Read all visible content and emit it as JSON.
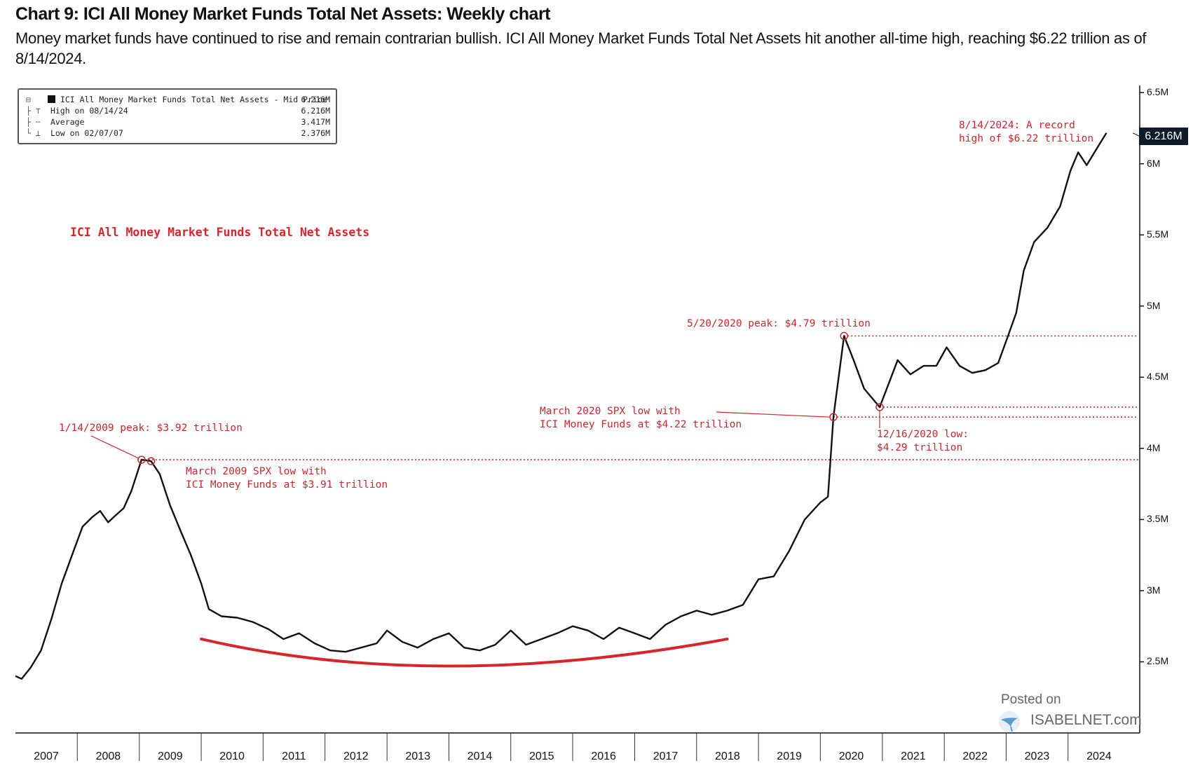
{
  "header": {
    "title": "Chart 9: ICI All Money Market Funds Total Net Assets: Weekly chart",
    "subtitle": "Money market funds have continued to rise and remain contrarian bullish. ICI All Money Market Funds Total Net Assets hit another all-time high, reaching $6.22 trillion as of 8/14/2024."
  },
  "legend": {
    "rows": [
      {
        "glyph": "⊟",
        "label": "ICI All Money Market Funds Total Net Assets - Mid Price",
        "value": "6.216M"
      },
      {
        "glyph": "├ ⊤",
        "label": "High on 08/14/24",
        "value": "6.216M"
      },
      {
        "glyph": "├ ╌",
        "label": "Average",
        "value": "3.417M"
      },
      {
        "glyph": "└ ⊥",
        "label": "Low on 02/07/07",
        "value": "2.376M"
      }
    ]
  },
  "series_label": "ICI All Money Market Funds Total Net Assets",
  "last_value_badge": "6.216M",
  "annotations": {
    "peak_2009": "1/14/2009 peak: $3.92 trillion",
    "low_2009": [
      "March 2009 SPX low with",
      "ICI Money Funds at $3.91 trillion"
    ],
    "low_2020_spx": [
      "March 2020 SPX low with",
      "ICI Money Funds at $4.22 trillion"
    ],
    "peak_2020": "5/20/2020 peak: $4.79 trillion",
    "low_2020_dec": [
      "12/16/2020 low:",
      "$4.29 trillion"
    ],
    "record_2024": [
      "8/14/2024: A record",
      "high of $6.22 trillion"
    ]
  },
  "watermark": {
    "line1": "Posted on",
    "line2": "ISABELNET.com"
  },
  "colors": {
    "line": "#111111",
    "annotation": "#c8282d",
    "trend_arc": "#d7262b",
    "badge": "#0d1b2a"
  },
  "chart_data": {
    "type": "line",
    "title": "Chart 9: ICI All Money Market Funds Total Net Assets: Weekly chart",
    "xlabel": "",
    "ylabel": "",
    "x_tick_labels": [
      "2007",
      "2008",
      "2009",
      "2010",
      "2011",
      "2012",
      "2013",
      "2014",
      "2015",
      "2016",
      "2017",
      "2018",
      "2019",
      "2020",
      "2021",
      "2022",
      "2023",
      "2024"
    ],
    "y_tick_labels": [
      "2.5M",
      "3M",
      "3.5M",
      "4M",
      "4.5M",
      "5M",
      "5.5M",
      "6M",
      "6.5M"
    ],
    "y_tick_values": [
      2.5,
      3.0,
      3.5,
      4.0,
      4.5,
      5.0,
      5.5,
      6.0,
      6.5
    ],
    "ylim": [
      2.0,
      6.55
    ],
    "xlim": [
      "2007-01-01",
      "2024-12-31"
    ],
    "y_axis_side": "right",
    "grid": false,
    "legend_position": "top-left",
    "series": [
      {
        "name": "ICI All Money Market Funds Total Net Assets - Mid Price",
        "points": [
          [
            "2007-01-01",
            2.4
          ],
          [
            "2007-02-07",
            2.38
          ],
          [
            "2007-04-01",
            2.46
          ],
          [
            "2007-06-01",
            2.58
          ],
          [
            "2007-08-01",
            2.8
          ],
          [
            "2007-10-01",
            3.05
          ],
          [
            "2007-12-01",
            3.25
          ],
          [
            "2008-02-01",
            3.45
          ],
          [
            "2008-04-01",
            3.52
          ],
          [
            "2008-05-15",
            3.56
          ],
          [
            "2008-07-01",
            3.48
          ],
          [
            "2008-08-15",
            3.53
          ],
          [
            "2008-10-01",
            3.58
          ],
          [
            "2008-11-15",
            3.7
          ],
          [
            "2009-01-14",
            3.92
          ],
          [
            "2009-03-11",
            3.91
          ],
          [
            "2009-05-01",
            3.82
          ],
          [
            "2009-07-01",
            3.6
          ],
          [
            "2009-09-01",
            3.42
          ],
          [
            "2009-11-01",
            3.25
          ],
          [
            "2010-01-01",
            3.05
          ],
          [
            "2010-02-15",
            2.87
          ],
          [
            "2010-05-01",
            2.82
          ],
          [
            "2010-08-01",
            2.81
          ],
          [
            "2010-11-01",
            2.78
          ],
          [
            "2011-02-01",
            2.73
          ],
          [
            "2011-05-01",
            2.66
          ],
          [
            "2011-08-01",
            2.7
          ],
          [
            "2011-11-01",
            2.63
          ],
          [
            "2012-02-01",
            2.58
          ],
          [
            "2012-05-01",
            2.57
          ],
          [
            "2012-08-01",
            2.6
          ],
          [
            "2012-11-01",
            2.63
          ],
          [
            "2013-01-01",
            2.72
          ],
          [
            "2013-04-01",
            2.64
          ],
          [
            "2013-07-01",
            2.6
          ],
          [
            "2013-10-01",
            2.66
          ],
          [
            "2014-01-01",
            2.7
          ],
          [
            "2014-04-01",
            2.6
          ],
          [
            "2014-07-01",
            2.58
          ],
          [
            "2014-10-01",
            2.62
          ],
          [
            "2015-01-01",
            2.72
          ],
          [
            "2015-04-01",
            2.62
          ],
          [
            "2015-07-01",
            2.66
          ],
          [
            "2015-10-01",
            2.7
          ],
          [
            "2016-01-01",
            2.75
          ],
          [
            "2016-04-01",
            2.72
          ],
          [
            "2016-07-01",
            2.66
          ],
          [
            "2016-10-01",
            2.74
          ],
          [
            "2017-01-01",
            2.7
          ],
          [
            "2017-04-01",
            2.66
          ],
          [
            "2017-07-01",
            2.76
          ],
          [
            "2017-10-01",
            2.82
          ],
          [
            "2018-01-01",
            2.86
          ],
          [
            "2018-04-01",
            2.83
          ],
          [
            "2018-07-01",
            2.86
          ],
          [
            "2018-10-01",
            2.9
          ],
          [
            "2019-01-01",
            3.08
          ],
          [
            "2019-04-01",
            3.1
          ],
          [
            "2019-07-01",
            3.28
          ],
          [
            "2019-10-01",
            3.5
          ],
          [
            "2020-01-01",
            3.62
          ],
          [
            "2020-02-15",
            3.66
          ],
          [
            "2020-03-18",
            4.22
          ],
          [
            "2020-05-20",
            4.79
          ],
          [
            "2020-07-15",
            4.62
          ],
          [
            "2020-09-15",
            4.42
          ],
          [
            "2020-12-16",
            4.29
          ],
          [
            "2021-02-15",
            4.48
          ],
          [
            "2021-04-01",
            4.62
          ],
          [
            "2021-06-15",
            4.52
          ],
          [
            "2021-09-01",
            4.58
          ],
          [
            "2021-11-15",
            4.58
          ],
          [
            "2022-01-15",
            4.71
          ],
          [
            "2022-04-01",
            4.58
          ],
          [
            "2022-06-15",
            4.53
          ],
          [
            "2022-09-01",
            4.55
          ],
          [
            "2022-11-15",
            4.6
          ],
          [
            "2023-01-15",
            4.8
          ],
          [
            "2023-03-01",
            4.95
          ],
          [
            "2023-04-15",
            5.25
          ],
          [
            "2023-06-15",
            5.45
          ],
          [
            "2023-09-01",
            5.55
          ],
          [
            "2023-11-15",
            5.7
          ],
          [
            "2024-01-15",
            5.95
          ],
          [
            "2024-03-01",
            6.08
          ],
          [
            "2024-04-20",
            5.99
          ],
          [
            "2024-06-15",
            6.1
          ],
          [
            "2024-08-14",
            6.216
          ]
        ]
      }
    ],
    "reference_lines": [
      {
        "value": 3.92,
        "style": "dotted"
      },
      {
        "value": 4.79,
        "style": "dotted"
      },
      {
        "value": 4.29,
        "style": "dotted"
      },
      {
        "value": 4.22,
        "style": "dotted"
      }
    ],
    "trend_arc": {
      "start": [
        "2010-01-01",
        2.66
      ],
      "bottom": [
        "2014-01-01",
        2.47
      ],
      "end": [
        "2018-07-01",
        2.66
      ]
    }
  }
}
